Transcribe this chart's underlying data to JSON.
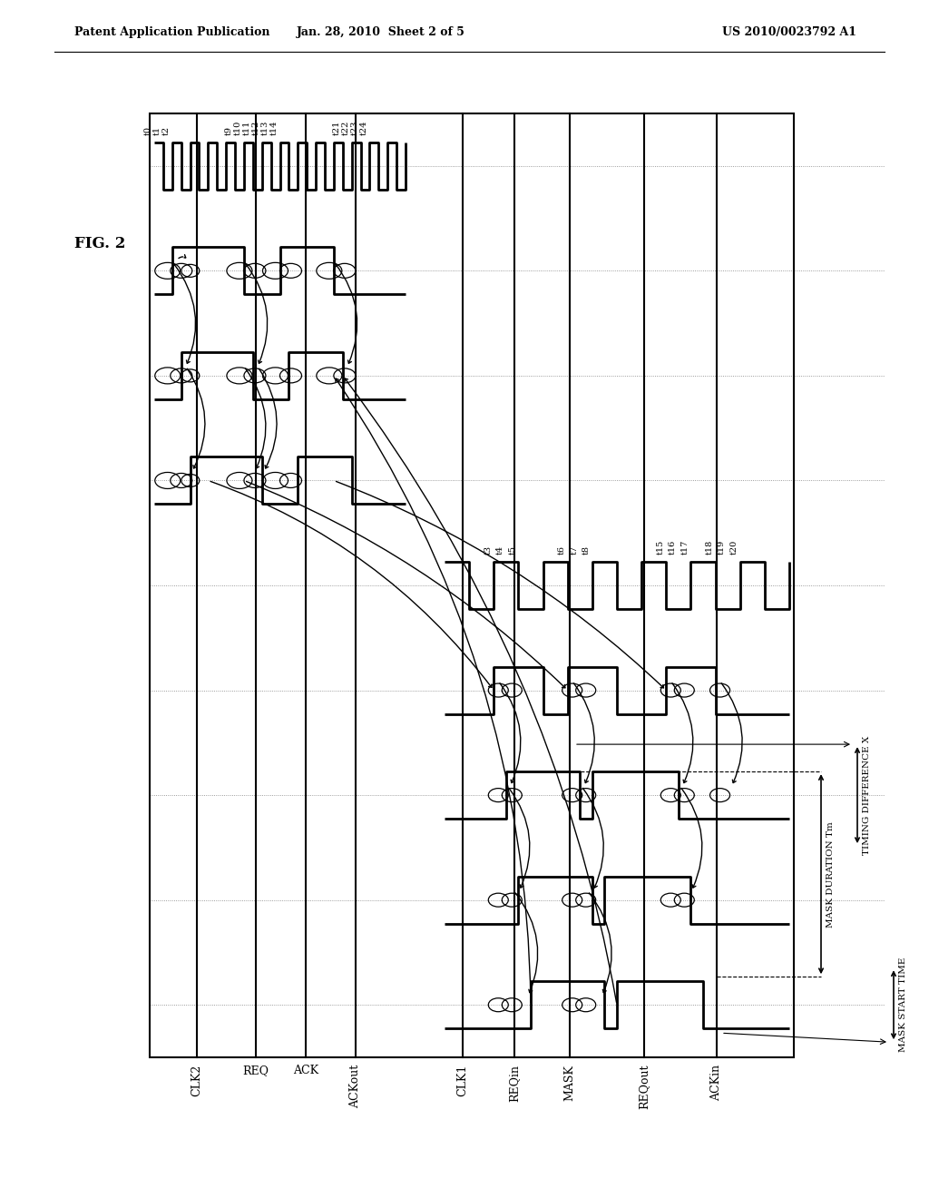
{
  "header_left": "Patent Application Publication",
  "header_mid": "Jan. 28, 2010  Sheet 2 of 5",
  "header_right": "US 2010/0023792 A1",
  "fig_label": "FIG. 2",
  "bg": "#ffffff",
  "lc": "#000000",
  "signal_names": [
    "CLK2",
    "REQ",
    "ACK",
    "ACKout",
    "CLK1",
    "REQin",
    "MASK",
    "REQout",
    "ACKin"
  ],
  "ann_mask_dur": "MASK DURATION Tm",
  "ann_timing": "TIMING DIFFERENCE X",
  "ann_mask_start": "MASK START TIME"
}
